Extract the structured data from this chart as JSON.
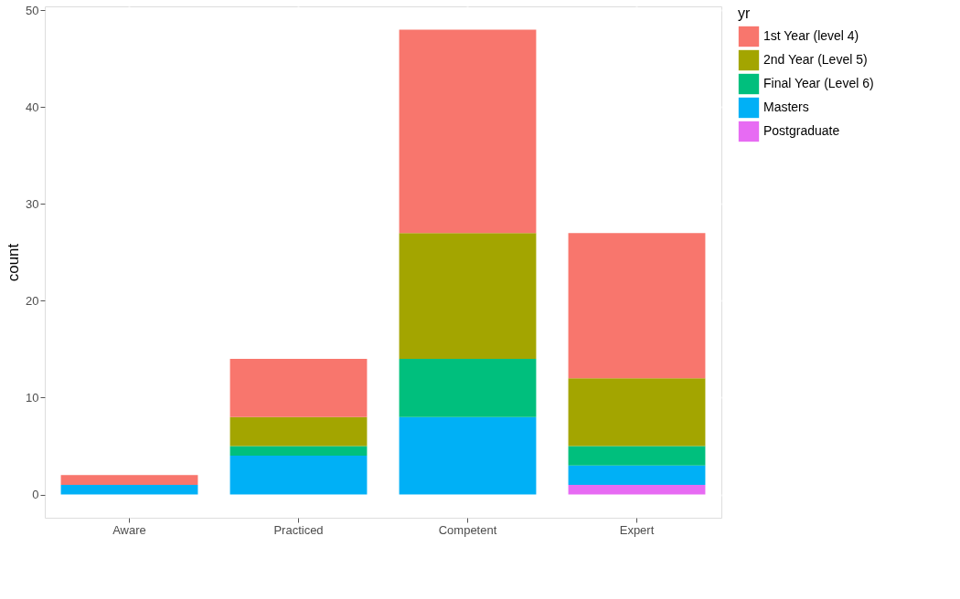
{
  "chart_data": {
    "type": "bar",
    "stacked": true,
    "ylabel": "count",
    "legend_title": "yr",
    "legend": "right",
    "grid": true,
    "categories": [
      "Aware",
      "Practiced",
      "Competent",
      "Expert"
    ],
    "ylim": [
      -2.4,
      50.4
    ],
    "yticks": [
      0,
      10,
      20,
      30,
      40,
      50
    ],
    "series": [
      {
        "name": "Postgraduate",
        "color": "#e76bf3",
        "values": [
          0,
          0,
          0,
          1
        ]
      },
      {
        "name": "Masters",
        "color": "#00b0f6",
        "values": [
          1,
          4,
          8,
          2
        ]
      },
      {
        "name": "Final Year (Level 6)",
        "color": "#00bf7d",
        "values": [
          0,
          1,
          6,
          2
        ]
      },
      {
        "name": "2nd Year (Level 5)",
        "color": "#a3a500",
        "values": [
          0,
          3,
          13,
          7
        ]
      },
      {
        "name": "1st Year (level 4)",
        "color": "#f8766d",
        "values": [
          1,
          6,
          21,
          15
        ]
      }
    ]
  }
}
